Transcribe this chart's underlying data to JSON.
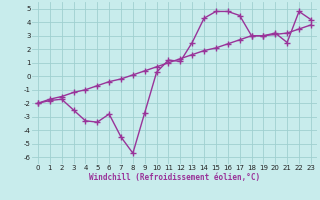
{
  "x_data": [
    0,
    1,
    2,
    3,
    4,
    5,
    6,
    7,
    8,
    9,
    10,
    11,
    12,
    13,
    14,
    15,
    16,
    17,
    18,
    19,
    20,
    21,
    22,
    23
  ],
  "y_data1": [
    -2,
    -1.8,
    -1.7,
    -2.5,
    -3.3,
    -3.4,
    -2.8,
    -4.5,
    -5.7,
    -2.7,
    0.3,
    1.2,
    1.1,
    2.5,
    4.3,
    4.8,
    4.8,
    4.5,
    3.0,
    3.0,
    3.2,
    2.5,
    4.8,
    4.2
  ],
  "y_data2": [
    -2,
    -1.7,
    -1.5,
    -1.2,
    -1.0,
    -0.7,
    -0.4,
    -0.2,
    0.1,
    0.4,
    0.7,
    1.0,
    1.3,
    1.6,
    1.9,
    2.1,
    2.4,
    2.7,
    3.0,
    3.0,
    3.1,
    3.2,
    3.5,
    3.8
  ],
  "color": "#993399",
  "bg_color": "#c8ecec",
  "grid_color": "#a0d0d0",
  "xlabel": "Windchill (Refroidissement éolien,°C)",
  "ylim": [
    -6.5,
    5.5
  ],
  "xlim": [
    -0.5,
    23.5
  ],
  "yticks": [
    -6,
    -5,
    -4,
    -3,
    -2,
    -1,
    0,
    1,
    2,
    3,
    4,
    5
  ],
  "xticks": [
    0,
    1,
    2,
    3,
    4,
    5,
    6,
    7,
    8,
    9,
    10,
    11,
    12,
    13,
    14,
    15,
    16,
    17,
    18,
    19,
    20,
    21,
    22,
    23
  ],
  "marker": "+",
  "linewidth": 1.0,
  "markersize": 4,
  "tick_fontsize": 5.0,
  "xlabel_fontsize": 5.5
}
